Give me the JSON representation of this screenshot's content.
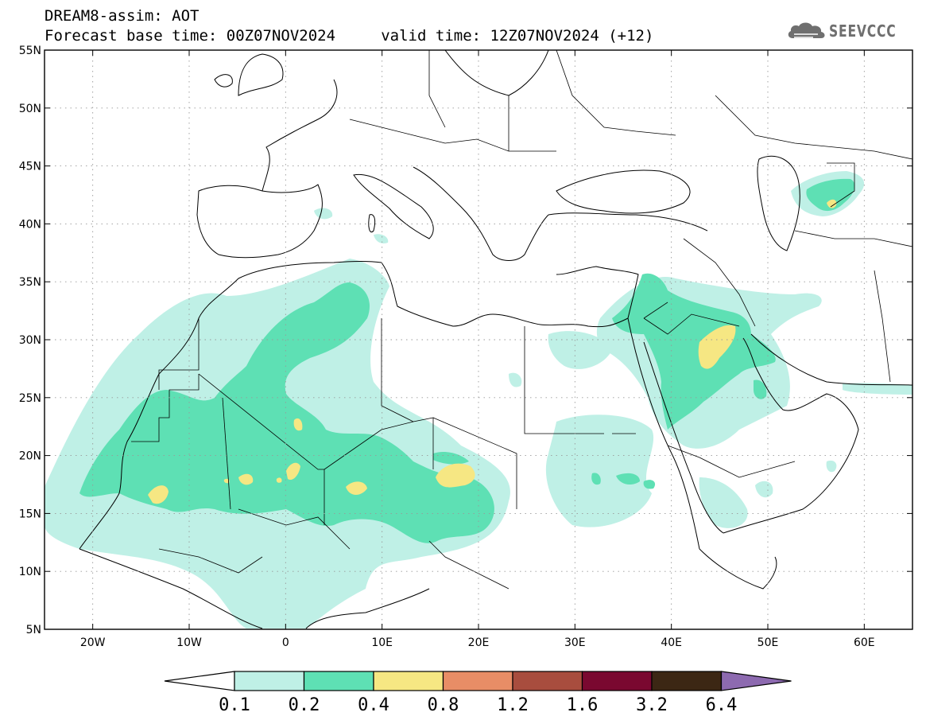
{
  "header": {
    "line1": "DREAM8-assim: AOT",
    "line2": "Forecast base time: 00Z07NOV2024     valid time: 12Z07NOV2024 (+12)"
  },
  "logo": {
    "text": "SEEVCCC",
    "icon": "cloud-icon"
  },
  "map": {
    "lon_range": [
      -25,
      65
    ],
    "lat_range": [
      5,
      55
    ],
    "lon_ticks": [
      {
        "lon": -20,
        "label": "20W"
      },
      {
        "lon": -10,
        "label": "10W"
      },
      {
        "lon": 0,
        "label": "0"
      },
      {
        "lon": 10,
        "label": "10E"
      },
      {
        "lon": 20,
        "label": "20E"
      },
      {
        "lon": 30,
        "label": "30E"
      },
      {
        "lon": 40,
        "label": "40E"
      },
      {
        "lon": 50,
        "label": "50E"
      },
      {
        "lon": 60,
        "label": "60E"
      }
    ],
    "lat_ticks": [
      {
        "lat": 55,
        "label": "55N"
      },
      {
        "lat": 50,
        "label": "50N"
      },
      {
        "lat": 45,
        "label": "45N"
      },
      {
        "lat": 40,
        "label": "40N"
      },
      {
        "lat": 35,
        "label": "35N"
      },
      {
        "lat": 30,
        "label": "30N"
      },
      {
        "lat": 25,
        "label": "25N"
      },
      {
        "lat": 20,
        "label": "20N"
      },
      {
        "lat": 15,
        "label": "15N"
      },
      {
        "lat": 10,
        "label": "10N"
      },
      {
        "lat": 5,
        "label": "5N"
      }
    ],
    "grid": "dotted"
  },
  "colorbar": {
    "colors": [
      "#bff0e6",
      "#5ee0b4",
      "#f6e783",
      "#e88d66",
      "#a84d3e",
      "#7a0830",
      "#3c2714"
    ],
    "labels": [
      "0.1",
      "0.2",
      "0.4",
      "0.8",
      "1.2",
      "1.6",
      "3.2",
      "6.4"
    ],
    "under_color": "#ffffff",
    "over_color": "#8d6ab0"
  }
}
